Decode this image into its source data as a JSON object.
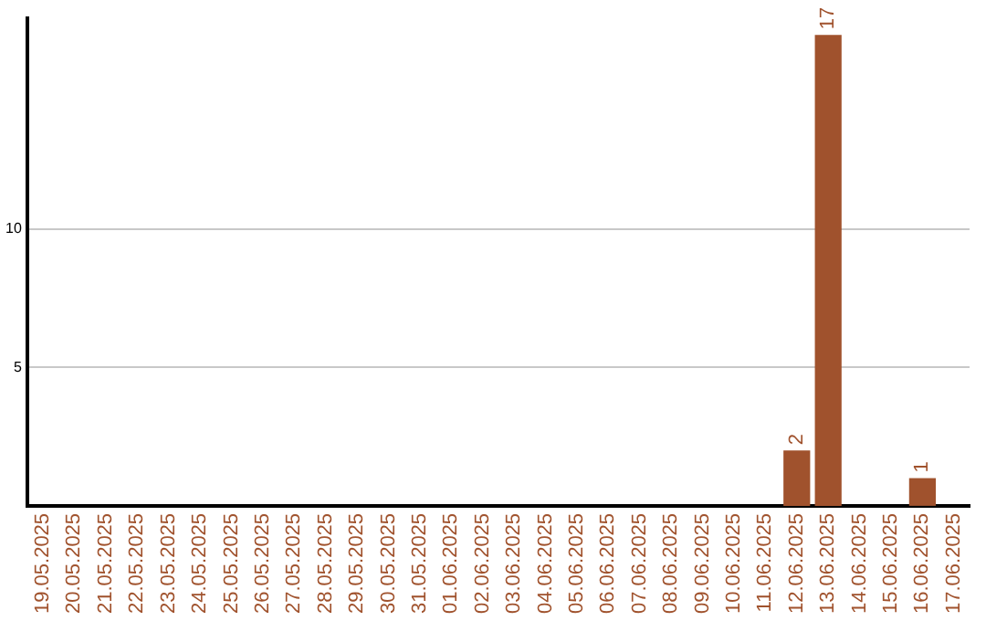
{
  "chart_data": {
    "type": "bar",
    "categories": [
      "19.05.2025",
      "20.05.2025",
      "21.05.2025",
      "22.05.2025",
      "23.05.2025",
      "24.05.2025",
      "25.05.2025",
      "26.05.2025",
      "27.05.2025",
      "28.05.2025",
      "29.05.2025",
      "30.05.2025",
      "31.05.2025",
      "01.06.2025",
      "02.06.2025",
      "03.06.2025",
      "04.06.2025",
      "05.06.2025",
      "06.06.2025",
      "07.06.2025",
      "08.06.2025",
      "09.06.2025",
      "10.06.2025",
      "11.06.2025",
      "12.06.2025",
      "13.06.2025",
      "14.06.2025",
      "15.06.2025",
      "16.06.2025",
      "17.06.2025"
    ],
    "values": [
      0,
      0,
      0,
      0,
      0,
      0,
      0,
      0,
      0,
      0,
      0,
      0,
      0,
      0,
      0,
      0,
      0,
      0,
      0,
      0,
      0,
      0,
      0,
      0,
      2,
      17,
      0,
      0,
      1,
      0
    ],
    "value_labels": [
      null,
      null,
      null,
      null,
      null,
      null,
      null,
      null,
      null,
      null,
      null,
      null,
      null,
      null,
      null,
      null,
      null,
      null,
      null,
      null,
      null,
      null,
      null,
      null,
      "2",
      "17",
      null,
      null,
      "1",
      null
    ],
    "color": "#a0522d",
    "ylim": [
      0,
      17.6
    ],
    "yticks": [
      5,
      10
    ],
    "grid": "y",
    "legend": false
  }
}
